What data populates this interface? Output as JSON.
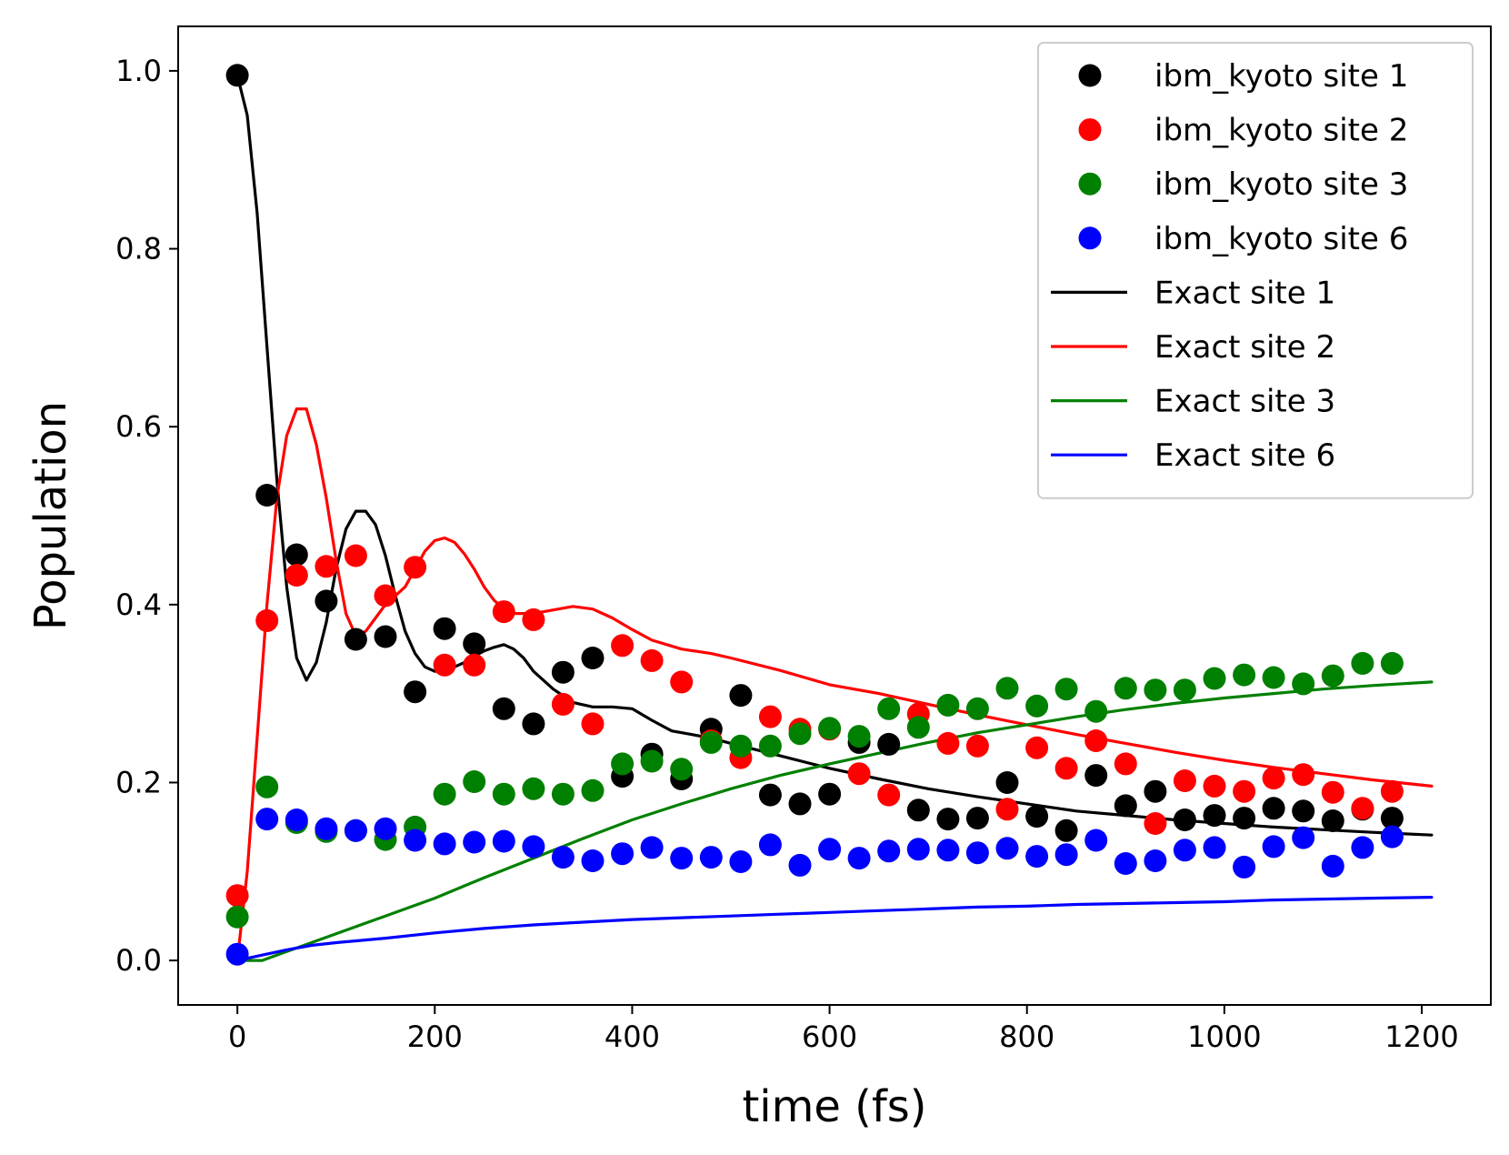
{
  "chart_data": {
    "type": "scatter",
    "title": "",
    "xlabel": "time (fs)",
    "ylabel": "Population",
    "xlim": [
      -60,
      1270
    ],
    "ylim": [
      -0.05,
      1.05
    ],
    "xticks": [
      0,
      200,
      400,
      600,
      800,
      1000,
      1200
    ],
    "yticks": [
      0.0,
      0.2,
      0.4,
      0.6,
      0.8,
      1.0
    ],
    "xtick_labels": [
      "0",
      "200",
      "400",
      "600",
      "800",
      "1000",
      "1200"
    ],
    "ytick_labels": [
      "0.0",
      "0.2",
      "0.4",
      "0.6",
      "0.8",
      "1.0"
    ],
    "grid": false,
    "legend_position": "top-right",
    "x_points": [
      0,
      30,
      60,
      90,
      120,
      150,
      180,
      210,
      240,
      270,
      300,
      330,
      360,
      390,
      420,
      450,
      480,
      510,
      540,
      570,
      600,
      630,
      660,
      690,
      720,
      750,
      780,
      810,
      840,
      870,
      900,
      930,
      960,
      990,
      1020,
      1050,
      1080,
      1110,
      1140,
      1170
    ],
    "scatter_series": [
      {
        "name": "ibm_kyoto site 1",
        "color": "#000000",
        "values": [
          0.995,
          0.523,
          0.456,
          0.404,
          0.361,
          0.364,
          0.302,
          0.373,
          0.356,
          0.283,
          0.266,
          0.324,
          0.34,
          0.207,
          0.232,
          0.204,
          0.26,
          0.298,
          0.186,
          0.176,
          0.187,
          0.245,
          0.243,
          0.169,
          0.159,
          0.16,
          0.2,
          0.162,
          0.146,
          0.208,
          0.174,
          0.19,
          0.158,
          0.163,
          0.16,
          0.171,
          0.168,
          0.157,
          0.17,
          0.16
        ]
      },
      {
        "name": "ibm_kyoto site 2",
        "color": "#ff0000",
        "values": [
          0.073,
          0.382,
          0.433,
          0.443,
          0.455,
          0.41,
          0.442,
          0.332,
          0.332,
          0.392,
          0.383,
          0.288,
          0.266,
          0.354,
          0.337,
          0.313,
          0.247,
          0.228,
          0.274,
          0.26,
          0.26,
          0.21,
          0.186,
          0.277,
          0.244,
          0.241,
          0.17,
          0.239,
          0.216,
          0.247,
          0.221,
          0.154,
          0.202,
          0.196,
          0.19,
          0.205,
          0.209,
          0.189,
          0.171,
          0.19
        ]
      },
      {
        "name": "ibm_kyoto site 3",
        "color": "#008000",
        "values": [
          0.049,
          0.195,
          0.155,
          0.145,
          0.146,
          0.136,
          0.15,
          0.187,
          0.201,
          0.187,
          0.193,
          0.187,
          0.191,
          0.221,
          0.224,
          0.215,
          0.245,
          0.241,
          0.241,
          0.255,
          0.261,
          0.252,
          0.283,
          0.262,
          0.287,
          0.283,
          0.306,
          0.286,
          0.305,
          0.28,
          0.306,
          0.304,
          0.304,
          0.317,
          0.321,
          0.318,
          0.311,
          0.32,
          0.334,
          0.334
        ]
      },
      {
        "name": "ibm_kyoto site 6",
        "color": "#0000ff",
        "values": [
          0.007,
          0.159,
          0.158,
          0.148,
          0.146,
          0.148,
          0.135,
          0.131,
          0.133,
          0.134,
          0.128,
          0.116,
          0.112,
          0.12,
          0.127,
          0.115,
          0.116,
          0.111,
          0.13,
          0.107,
          0.125,
          0.115,
          0.123,
          0.125,
          0.124,
          0.121,
          0.126,
          0.117,
          0.119,
          0.135,
          0.109,
          0.112,
          0.124,
          0.127,
          0.105,
          0.128,
          0.138,
          0.106,
          0.127,
          0.139
        ]
      }
    ],
    "line_series": [
      {
        "name": "Exact site 1",
        "color": "#000000",
        "x": [
          0,
          10,
          20,
          30,
          40,
          50,
          60,
          70,
          80,
          90,
          100,
          110,
          120,
          130,
          140,
          150,
          160,
          170,
          180,
          190,
          200,
          210,
          220,
          230,
          240,
          250,
          260,
          270,
          280,
          290,
          300,
          320,
          340,
          360,
          380,
          400,
          420,
          440,
          460,
          480,
          500,
          550,
          600,
          650,
          700,
          750,
          800,
          850,
          900,
          950,
          1000,
          1050,
          1100,
          1150,
          1210
        ],
        "y": [
          0.995,
          0.95,
          0.84,
          0.69,
          0.54,
          0.42,
          0.34,
          0.315,
          0.335,
          0.38,
          0.44,
          0.485,
          0.505,
          0.505,
          0.49,
          0.455,
          0.41,
          0.37,
          0.345,
          0.33,
          0.325,
          0.326,
          0.33,
          0.335,
          0.342,
          0.348,
          0.352,
          0.355,
          0.35,
          0.34,
          0.325,
          0.305,
          0.29,
          0.285,
          0.285,
          0.283,
          0.27,
          0.258,
          0.254,
          0.25,
          0.244,
          0.23,
          0.216,
          0.204,
          0.193,
          0.184,
          0.176,
          0.168,
          0.163,
          0.158,
          0.154,
          0.15,
          0.147,
          0.144,
          0.141
        ]
      },
      {
        "name": "Exact site 2",
        "color": "#ff0000",
        "x": [
          0,
          10,
          20,
          30,
          40,
          50,
          60,
          70,
          80,
          90,
          100,
          110,
          120,
          130,
          140,
          150,
          160,
          170,
          180,
          190,
          200,
          210,
          220,
          230,
          240,
          250,
          260,
          270,
          280,
          290,
          300,
          320,
          340,
          360,
          380,
          400,
          420,
          450,
          480,
          500,
          550,
          600,
          650,
          700,
          750,
          800,
          850,
          900,
          950,
          1000,
          1050,
          1100,
          1150,
          1210
        ],
        "y": [
          0.0,
          0.1,
          0.25,
          0.4,
          0.52,
          0.59,
          0.62,
          0.62,
          0.58,
          0.52,
          0.45,
          0.39,
          0.365,
          0.37,
          0.385,
          0.4,
          0.41,
          0.42,
          0.44,
          0.46,
          0.472,
          0.475,
          0.47,
          0.457,
          0.44,
          0.42,
          0.405,
          0.395,
          0.39,
          0.39,
          0.39,
          0.394,
          0.398,
          0.395,
          0.385,
          0.372,
          0.36,
          0.35,
          0.345,
          0.34,
          0.326,
          0.31,
          0.3,
          0.288,
          0.276,
          0.265,
          0.254,
          0.244,
          0.234,
          0.225,
          0.217,
          0.21,
          0.203,
          0.196
        ]
      },
      {
        "name": "Exact site 3",
        "color": "#008000",
        "x": [
          0,
          25,
          50,
          75,
          100,
          150,
          200,
          250,
          300,
          350,
          400,
          450,
          500,
          550,
          600,
          650,
          700,
          750,
          800,
          850,
          900,
          950,
          1000,
          1050,
          1100,
          1150,
          1210
        ],
        "y": [
          0.0,
          0.0,
          0.01,
          0.02,
          0.03,
          0.05,
          0.07,
          0.093,
          0.115,
          0.137,
          0.158,
          0.176,
          0.193,
          0.208,
          0.221,
          0.233,
          0.245,
          0.256,
          0.265,
          0.274,
          0.282,
          0.289,
          0.295,
          0.3,
          0.305,
          0.309,
          0.313
        ]
      },
      {
        "name": "Exact site 6",
        "color": "#0000ff",
        "x": [
          0,
          25,
          50,
          75,
          100,
          150,
          200,
          250,
          300,
          350,
          400,
          450,
          500,
          550,
          600,
          650,
          700,
          750,
          800,
          850,
          900,
          950,
          1000,
          1050,
          1100,
          1150,
          1210
        ],
        "y": [
          0.0,
          0.006,
          0.012,
          0.017,
          0.02,
          0.025,
          0.031,
          0.036,
          0.04,
          0.043,
          0.046,
          0.048,
          0.05,
          0.052,
          0.054,
          0.056,
          0.058,
          0.06,
          0.061,
          0.063,
          0.064,
          0.065,
          0.066,
          0.068,
          0.069,
          0.07,
          0.071
        ]
      }
    ],
    "legend": [
      {
        "label": "ibm_kyoto site 1",
        "kind": "marker",
        "color": "#000000"
      },
      {
        "label": "ibm_kyoto site 2",
        "kind": "marker",
        "color": "#ff0000"
      },
      {
        "label": "ibm_kyoto site 3",
        "kind": "marker",
        "color": "#008000"
      },
      {
        "label": "ibm_kyoto site 6",
        "kind": "marker",
        "color": "#0000ff"
      },
      {
        "label": "Exact site 1",
        "kind": "line",
        "color": "#000000"
      },
      {
        "label": "Exact site 2",
        "kind": "line",
        "color": "#ff0000"
      },
      {
        "label": "Exact site 3",
        "kind": "line",
        "color": "#008000"
      },
      {
        "label": "Exact site 6",
        "kind": "line",
        "color": "#0000ff"
      }
    ]
  }
}
